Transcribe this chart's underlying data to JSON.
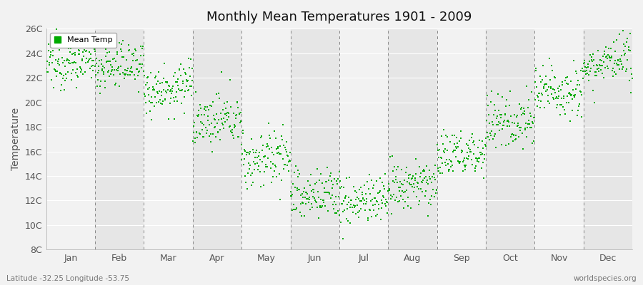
{
  "title": "Monthly Mean Temperatures 1901 - 2009",
  "ylabel": "Temperature",
  "months": [
    "Jan",
    "Feb",
    "Mar",
    "Apr",
    "May",
    "Jun",
    "Jul",
    "Aug",
    "Sep",
    "Oct",
    "Nov",
    "Dec"
  ],
  "ylim": [
    8,
    26
  ],
  "yticks": [
    8,
    10,
    12,
    14,
    16,
    18,
    20,
    22,
    24,
    26
  ],
  "ytick_labels": [
    "8C",
    "10C",
    "12C",
    "14C",
    "16C",
    "18C",
    "20C",
    "22C",
    "24C",
    "26C"
  ],
  "mean_temps": [
    23.2,
    23.0,
    21.2,
    18.5,
    15.5,
    12.5,
    12.0,
    13.2,
    15.8,
    18.5,
    21.0,
    23.2
  ],
  "temp_std": [
    0.9,
    0.9,
    1.0,
    1.0,
    1.2,
    1.1,
    1.0,
    1.0,
    1.0,
    1.1,
    1.1,
    0.9
  ],
  "temp_trend": [
    0.005,
    0.005,
    0.005,
    0.005,
    0.005,
    0.005,
    0.005,
    0.005,
    0.005,
    0.005,
    0.005,
    0.005
  ],
  "dot_color": "#00aa00",
  "background_color": "#f2f2f2",
  "band_color_light": "#f2f2f2",
  "band_color_dark": "#e6e6e6",
  "n_years": 109,
  "footer_left": "Latitude -32.25 Longitude -53.75",
  "footer_right": "worldspecies.org",
  "legend_label": "Mean Temp",
  "dot_size": 3,
  "title_fontsize": 13,
  "axis_fontsize": 9,
  "ylabel_fontsize": 10
}
